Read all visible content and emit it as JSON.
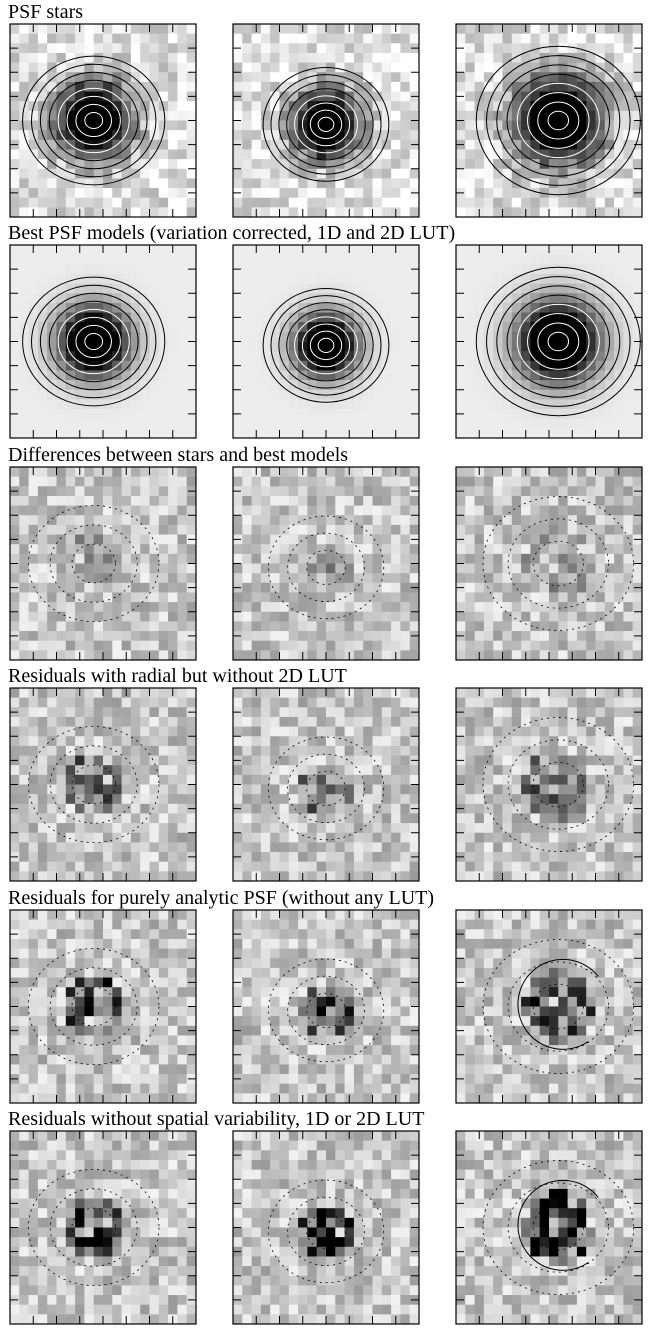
{
  "rows": [
    {
      "title": "PSF stars"
    },
    {
      "title": "Best PSF models (variation corrected, 1D and 2D LUT)"
    },
    {
      "title": "Differences between stars and best models"
    },
    {
      "title": "Residuals with radial but without 2D LUT"
    },
    {
      "title": "Residuals for purely analytic PSF (without any LUT)"
    },
    {
      "title": "Residuals without spatial variability, 1D or 2D LUT"
    }
  ]
}
